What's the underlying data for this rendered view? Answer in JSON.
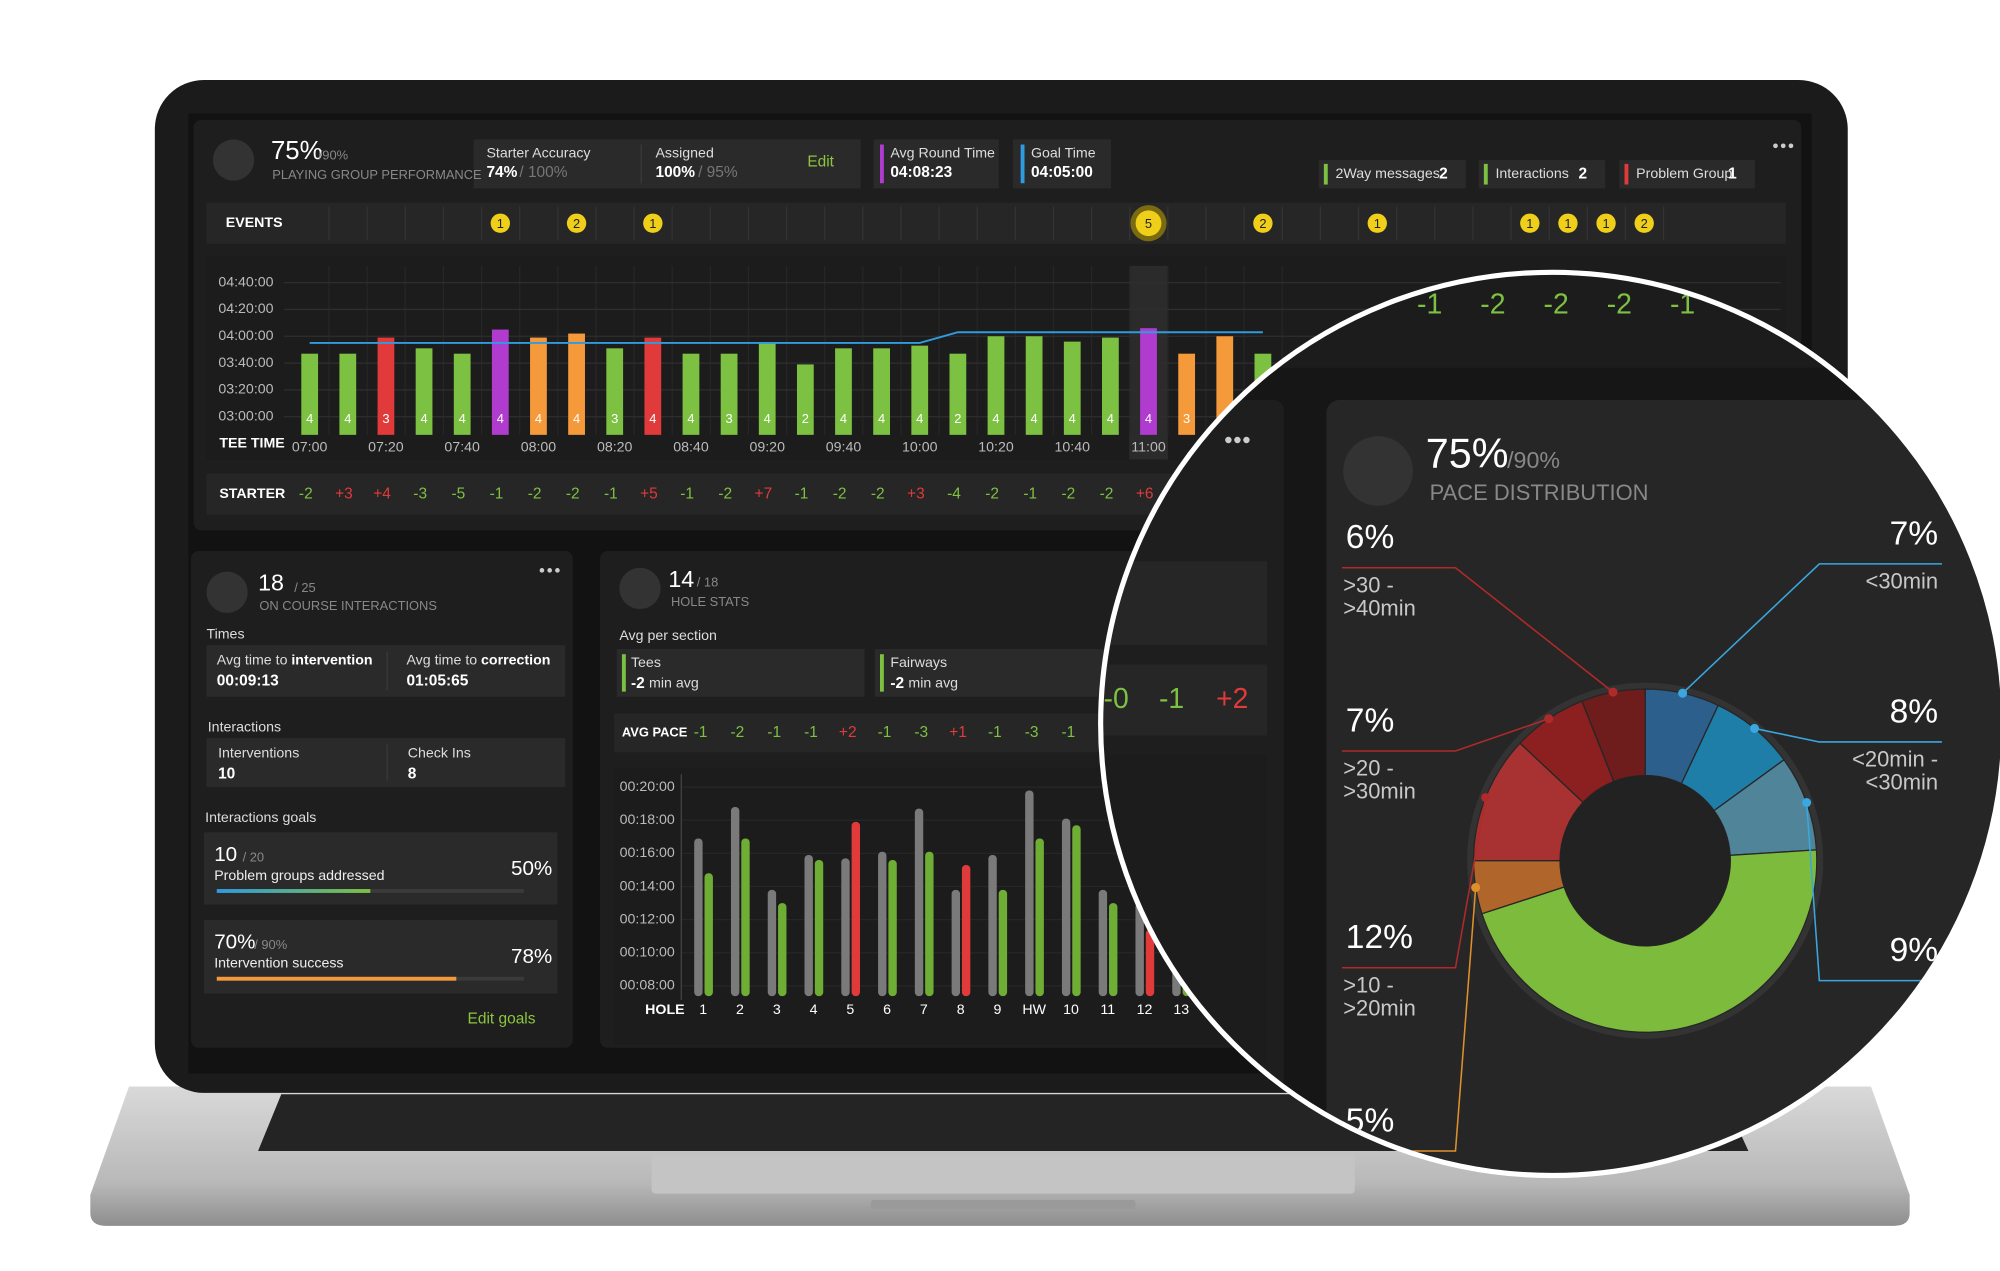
{
  "header": {
    "score": "75%",
    "target": "/90%",
    "label": "PLAYING GROUP PERFORMANCE"
  },
  "stats": [
    {
      "label": "Starter Accuracy",
      "value": "74%",
      "target": "/ 100%"
    },
    {
      "label": "Assigned",
      "value": "100%",
      "target": "/ 95%",
      "action": "Edit"
    },
    {
      "label": "Avg Round Time",
      "value": "04:08:23",
      "color": "#b03ccf"
    },
    {
      "label": "Goal Time",
      "value": "04:05:00",
      "color": "#2f9be0"
    }
  ],
  "badges": [
    {
      "label": "2Way messages",
      "value": "2",
      "color": "#7dc142"
    },
    {
      "label": "Interactions",
      "value": "2",
      "color": "#7dc142"
    },
    {
      "label": "Problem Group",
      "value": "1",
      "color": "#e03a3a"
    }
  ],
  "events": {
    "label": "EVENTS",
    "selected": 22,
    "slots": [
      null,
      null,
      null,
      null,
      null,
      1,
      null,
      2,
      null,
      1,
      null,
      null,
      null,
      null,
      null,
      null,
      null,
      null,
      null,
      null,
      null,
      null,
      5,
      null,
      null,
      2,
      null,
      null,
      1,
      null,
      null,
      null,
      1,
      1,
      1,
      2
    ]
  },
  "starter": {
    "label": "STARTER",
    "values": [
      "-2",
      "+3",
      "+4",
      "-3",
      "-5",
      "-1",
      "-2",
      "-2",
      "-1",
      "+5",
      "-1",
      "-2",
      "+7",
      "-1",
      "-2",
      "-2",
      "+3",
      "-4",
      "-2",
      "-1",
      "-2",
      "-2",
      "+6"
    ]
  },
  "chart_data": [
    {
      "type": "bar",
      "xlabel": "TEE TIME",
      "categories": [
        "07:00",
        null,
        "07:20",
        null,
        "07:40",
        null,
        "08:00",
        null,
        "08:20",
        null,
        "08:40",
        null,
        "09:20",
        null,
        "09:40",
        null,
        "10:00",
        null,
        "10:20",
        null,
        "10:40",
        null,
        "11:00",
        null,
        null,
        null
      ],
      "values": [
        227,
        227,
        239,
        231,
        227,
        245,
        239,
        242,
        231,
        239,
        227,
        227,
        235,
        219,
        231,
        231,
        233,
        227,
        240,
        240,
        236,
        239,
        246,
        227,
        240,
        227
      ],
      "colors": [
        "#7dc142",
        "#7dc142",
        "#e03a3a",
        "#7dc142",
        "#7dc142",
        "#b03ccf",
        "#f59a3a",
        "#f59a3a",
        "#7dc142",
        "#e03a3a",
        "#7dc142",
        "#7dc142",
        "#7dc142",
        "#7dc142",
        "#7dc142",
        "#7dc142",
        "#7dc142",
        "#7dc142",
        "#7dc142",
        "#7dc142",
        "#7dc142",
        "#7dc142",
        "#b03ccf",
        "#f59a3a",
        "#f59a3a",
        "#7dc142"
      ],
      "group_sizes": [
        4,
        4,
        3,
        4,
        4,
        4,
        4,
        4,
        3,
        4,
        4,
        3,
        4,
        2,
        4,
        4,
        4,
        2,
        4,
        4,
        4,
        4,
        4,
        3,
        null,
        null
      ],
      "goal_values": [
        235,
        235,
        235,
        235,
        235,
        235,
        235,
        235,
        235,
        235,
        235,
        235,
        235,
        235,
        235,
        235,
        235,
        243,
        243,
        243,
        243,
        243,
        243,
        243,
        243,
        243
      ],
      "goal_color": "#2f9be0",
      "ylim": [
        166.5,
        292.5
      ],
      "yticks": [
        {
          "value": 180,
          "label": "03:00:00"
        },
        {
          "value": 200,
          "label": "03:20:00"
        },
        {
          "value": 220,
          "label": "03:40:00"
        },
        {
          "value": 240,
          "label": "04:00:00"
        },
        {
          "value": 260,
          "label": "04:20:00"
        },
        {
          "value": 280,
          "label": "04:40:00"
        }
      ],
      "grid": true
    },
    {
      "type": "bar",
      "xlabel": "HOLE",
      "categories": [
        "1",
        "2",
        "3",
        "4",
        "5",
        "6",
        "7",
        "8",
        "9",
        "HW",
        "10",
        "11",
        "12",
        "13"
      ],
      "series": [
        {
          "color": "#7a7a7a",
          "values": [
            16.9,
            18.8,
            13.8,
            15.9,
            15.7,
            16.1,
            18.7,
            13.8,
            15.9,
            19.8,
            18.1,
            13.8,
            13.0,
            13.0
          ]
        },
        {
          "colors": [
            "#6fae35",
            "#6fae35",
            "#6fae35",
            "#6fae35",
            "#e03a3a",
            "#6fae35",
            "#6fae35",
            "#e03a3a",
            "#6fae35",
            "#6fae35",
            "#6fae35",
            "#6fae35",
            "#e03a3a",
            "#6fae35"
          ],
          "values": [
            14.8,
            16.9,
            13.0,
            15.6,
            17.9,
            15.6,
            16.1,
            15.3,
            13.8,
            16.9,
            17.7,
            13.0,
            11.4,
            11.4
          ]
        }
      ],
      "ylim": [
        7.38,
        20.78
      ],
      "yticks": [
        {
          "value": 8,
          "label": "00:08:00"
        },
        {
          "value": 10,
          "label": "00:10:00"
        },
        {
          "value": 12,
          "label": "00:12:00"
        },
        {
          "value": 14,
          "label": "00:14:00"
        },
        {
          "value": 16,
          "label": "00:16:00"
        },
        {
          "value": 18,
          "label": "00:18:00"
        },
        {
          "value": 20,
          "label": "00:20:00"
        }
      ],
      "grid": true
    },
    {
      "type": "pie",
      "title": "PACE DISTRIBUTION",
      "score": "75%",
      "target": "/90%",
      "donut": true,
      "categories": [
        "<30min",
        "<20min - <30min",
        null,
        null,
        null,
        ">10 - >20min",
        ">20 - >30min",
        ">30 - >40min"
      ],
      "values": [
        7,
        8,
        9,
        46,
        5,
        12,
        7,
        6
      ],
      "value_labels": [
        "7%",
        "8%",
        "9%",
        null,
        "5%",
        "12%",
        "7%",
        "6%"
      ],
      "colors": [
        "#2d5f8c",
        "#1f7ea8",
        "#4f8499",
        "#7dbb3c",
        "#b0652a",
        "#a83232",
        "#8c2020",
        "#6e1c1c"
      ]
    }
  ],
  "interactions": {
    "score": "18",
    "target": "/ 25",
    "label": "ON COURSE INTERACTIONS",
    "times_label": "Times",
    "times": [
      {
        "label": "Avg time to",
        "emphasis": "intervention",
        "value": "00:09:13"
      },
      {
        "label": "Avg time to",
        "emphasis": "correction",
        "value": "01:05:65"
      }
    ],
    "counts_label": "Interactions",
    "counts": [
      {
        "label": "Interventions",
        "value": "10"
      },
      {
        "label": "Check Ins",
        "value": "8"
      }
    ],
    "goals_label": "Interactions goals",
    "goals": [
      {
        "value": "10",
        "target": "/ 20",
        "label": "Problem groups addressed",
        "pct": {
          "value": 50,
          "label": "50%"
        },
        "color": "#2f9be0"
      },
      {
        "value": "70%",
        "target": "/ 90%",
        "label": "Intervention success",
        "pct": {
          "value": 78,
          "label": "78%"
        },
        "color": "#f59a3a"
      }
    ],
    "action": "Edit goals"
  },
  "hole_stats": {
    "score": "14",
    "target": "/ 18",
    "label": "HOLE STATS",
    "section_label": "Avg per section",
    "sections": [
      {
        "label": "Tees",
        "value": "-2",
        "unit": "min avg"
      },
      {
        "label": "Fairways",
        "value": "-2",
        "unit": "min avg"
      }
    ],
    "pace_label": "AVG PACE",
    "pace": [
      "-1",
      "-2",
      "-1",
      "-1",
      "+2",
      "-1",
      "-3",
      "+1",
      "-1",
      "-3",
      "-1"
    ]
  },
  "zoom": {
    "deltas": [
      "-1",
      "-2",
      "-2",
      "-2",
      "-1"
    ],
    "pace": [
      "-0",
      "-1",
      "+2"
    ]
  }
}
